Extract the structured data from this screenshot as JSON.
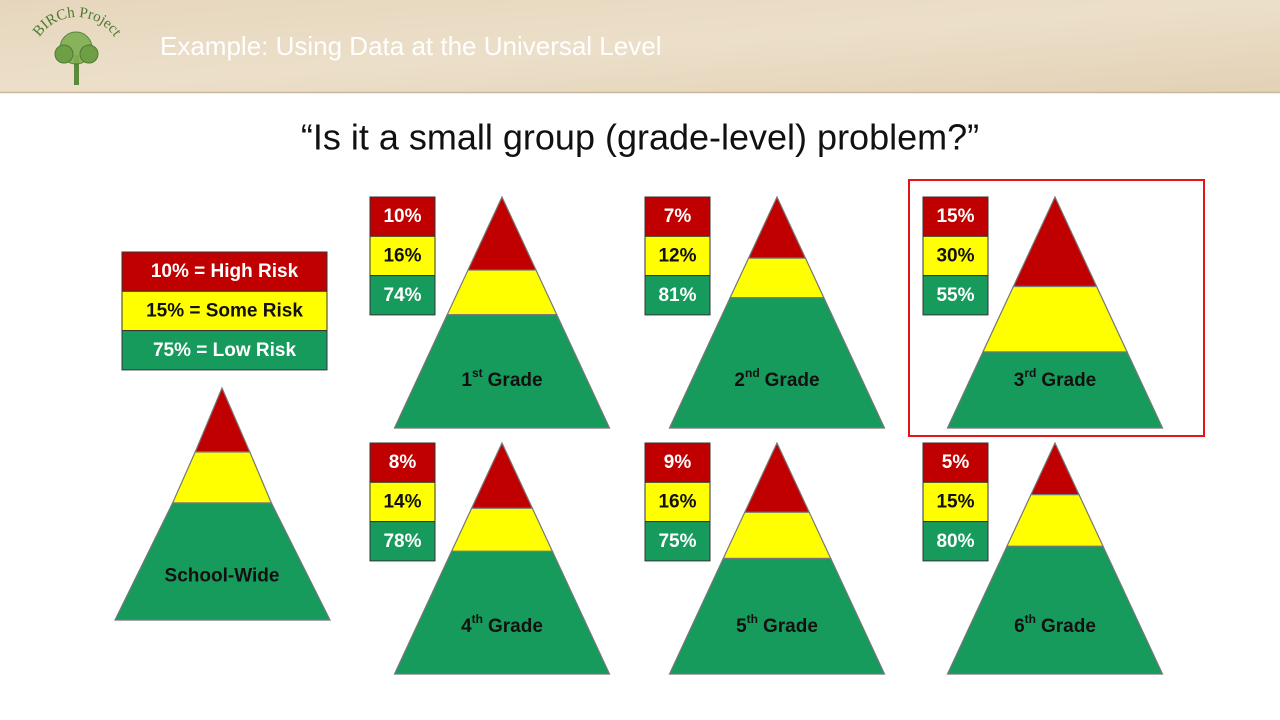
{
  "header": {
    "logo": "BIRCh Project",
    "title": "Example: Using Data at the Universal Level"
  },
  "question": "“Is it a small group (grade-level) problem?”",
  "legend": [
    "10% = High Risk",
    "15% = Some Risk",
    "75% = Low Risk"
  ],
  "school_wide": {
    "label": "School-Wide"
  },
  "pyramids": [
    {
      "number": "1",
      "suffix": "st",
      "word": "Grade",
      "values": [
        10,
        16,
        74
      ],
      "value_labels": [
        "10%",
        "16%",
        "74%"
      ]
    },
    {
      "number": "2",
      "suffix": "nd",
      "word": "Grade",
      "values": [
        7,
        12,
        81
      ],
      "value_labels": [
        "7%",
        "12%",
        "81%"
      ]
    },
    {
      "number": "3",
      "suffix": "rd",
      "word": "Grade",
      "values": [
        15,
        30,
        55
      ],
      "value_labels": [
        "15%",
        "30%",
        "55%"
      ],
      "highlighted": true
    },
    {
      "number": "4",
      "suffix": "th",
      "word": "Grade",
      "values": [
        8,
        14,
        78
      ],
      "value_labels": [
        "8%",
        "14%",
        "78%"
      ]
    },
    {
      "number": "5",
      "suffix": "th",
      "word": "Grade",
      "values": [
        9,
        16,
        75
      ],
      "value_labels": [
        "9%",
        "16%",
        "75%"
      ]
    },
    {
      "number": "6",
      "suffix": "th",
      "word": "Grade",
      "values": [
        5,
        15,
        80
      ],
      "value_labels": [
        "5%",
        "15%",
        "80%"
      ]
    }
  ],
  "colors": [
    "#c00000",
    "#ffff00",
    "#179b5c"
  ]
}
